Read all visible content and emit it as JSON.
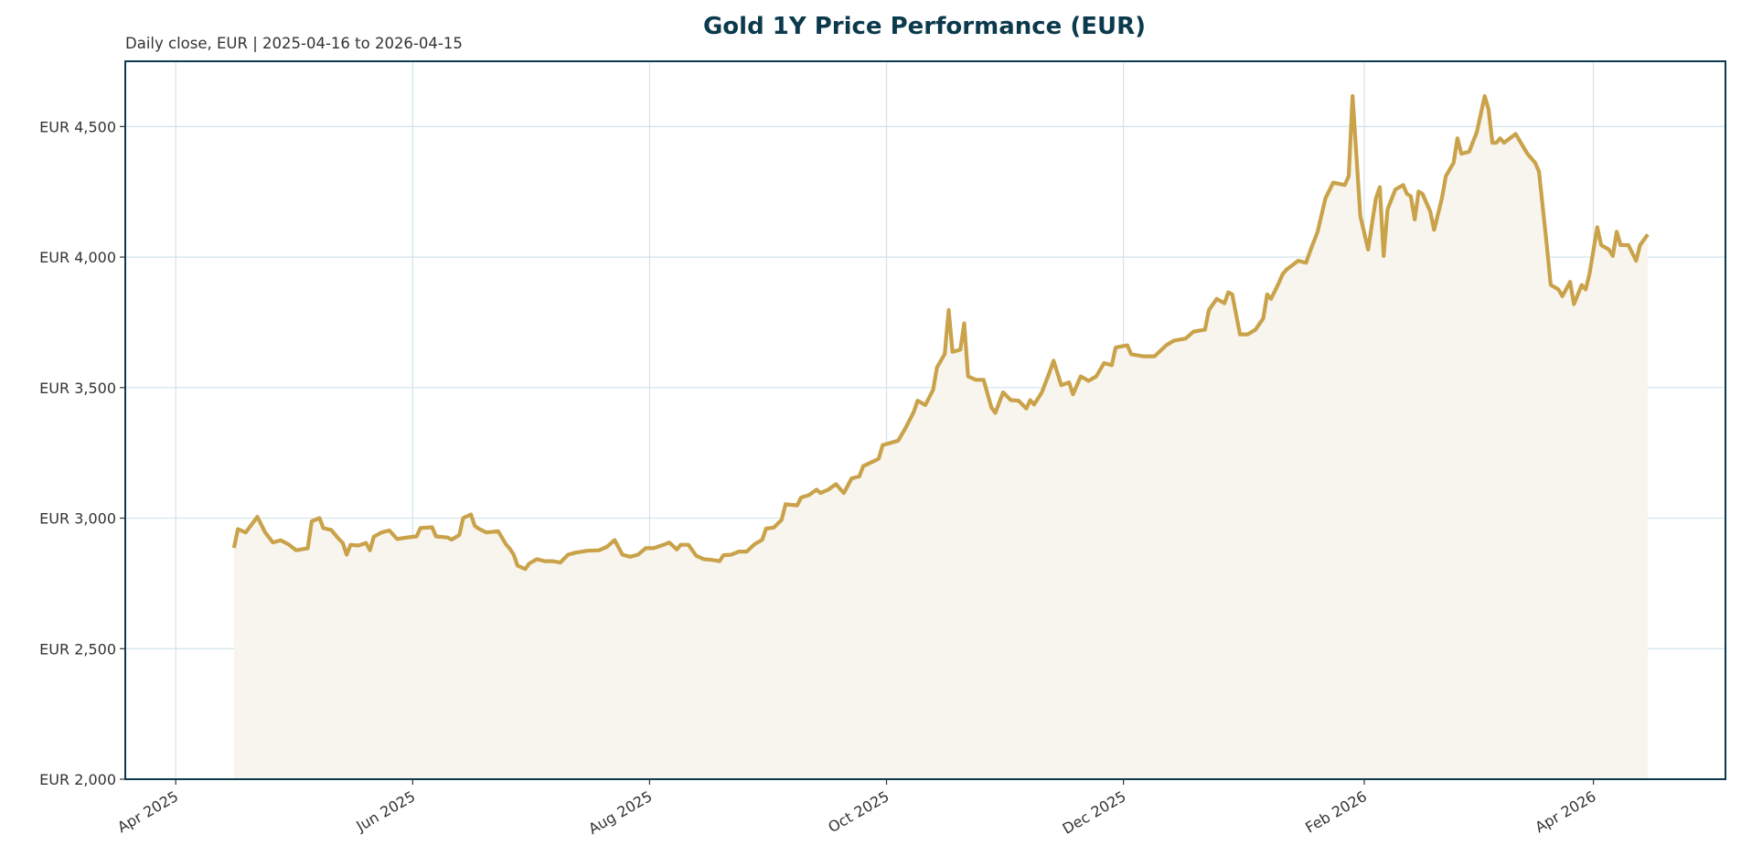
{
  "chart_data": {
    "type": "area",
    "title": "Gold 1Y Price Performance (EUR)",
    "subtitle": "Daily close, EUR | 2025-04-16 to 2026-04-15",
    "xlabel": "",
    "ylabel": "",
    "ylim": [
      2000,
      4750
    ],
    "xlim": [
      "2025-03-19",
      "2026-05-05"
    ],
    "y_ticks": [
      2000,
      2500,
      3000,
      3500,
      4000,
      4500
    ],
    "y_tick_labels": [
      "EUR 2,000",
      "EUR 2,500",
      "EUR 3,000",
      "EUR 3,500",
      "EUR 4,000",
      "EUR 4,500"
    ],
    "x_ticks": [
      "2025-04-01",
      "2025-06-01",
      "2025-08-01",
      "2025-10-01",
      "2025-12-01",
      "2026-02-01",
      "2026-04-01"
    ],
    "x_tick_labels": [
      "Apr 2025",
      "Jun 2025",
      "Aug 2025",
      "Oct 2025",
      "Dec 2025",
      "Feb 2026",
      "Apr 2026"
    ],
    "grid": true,
    "legend": "none",
    "colors": {
      "line": "#c9a24a",
      "fill": "#f8f5ee",
      "grid": "#d3e3ea",
      "spine": "#0b3a4d",
      "title": "#0b3a4d",
      "text": "#333333"
    },
    "series": [
      {
        "x": [
          "2025-04-16",
          "2025-04-17",
          "2025-04-19",
          "2025-04-22",
          "2025-04-24",
          "2025-04-26",
          "2025-04-28",
          "2025-04-30",
          "2025-05-02",
          "2025-05-05",
          "2025-05-06",
          "2025-05-08",
          "2025-05-09",
          "2025-05-11",
          "2025-05-13",
          "2025-05-14",
          "2025-05-15",
          "2025-05-16",
          "2025-05-18",
          "2025-05-20",
          "2025-05-21",
          "2025-05-22",
          "2025-05-24",
          "2025-05-26",
          "2025-05-28",
          "2025-05-30",
          "2025-06-02",
          "2025-06-03",
          "2025-06-06",
          "2025-06-07",
          "2025-06-10",
          "2025-06-11",
          "2025-06-13",
          "2025-06-14",
          "2025-06-16",
          "2025-06-17",
          "2025-06-18",
          "2025-06-20",
          "2025-06-23",
          "2025-06-25",
          "2025-06-26",
          "2025-06-27",
          "2025-06-28",
          "2025-06-30",
          "2025-07-01",
          "2025-07-03",
          "2025-07-05",
          "2025-07-07",
          "2025-07-09",
          "2025-07-11",
          "2025-07-13",
          "2025-07-16",
          "2025-07-19",
          "2025-07-21",
          "2025-07-23",
          "2025-07-25",
          "2025-07-27",
          "2025-07-29",
          "2025-07-31",
          "2025-08-02",
          "2025-08-05",
          "2025-08-06",
          "2025-08-08",
          "2025-08-09",
          "2025-08-11",
          "2025-08-13",
          "2025-08-15",
          "2025-08-17",
          "2025-08-19",
          "2025-08-20",
          "2025-08-22",
          "2025-08-24",
          "2025-08-26",
          "2025-08-28",
          "2025-08-30",
          "2025-08-31",
          "2025-09-02",
          "2025-09-04",
          "2025-09-05",
          "2025-09-08",
          "2025-09-09",
          "2025-09-11",
          "2025-09-13",
          "2025-09-14",
          "2025-09-16",
          "2025-09-18",
          "2025-09-20",
          "2025-09-22",
          "2025-09-24",
          "2025-09-25",
          "2025-09-28",
          "2025-09-29",
          "2025-09-30",
          "2025-10-02",
          "2025-10-04",
          "2025-10-06",
          "2025-10-08",
          "2025-10-09",
          "2025-10-11",
          "2025-10-13",
          "2025-10-14",
          "2025-10-16",
          "2025-10-17",
          "2025-10-18",
          "2025-10-20",
          "2025-10-21",
          "2025-10-22",
          "2025-10-24",
          "2025-10-26",
          "2025-10-28",
          "2025-10-29",
          "2025-10-31",
          "2025-11-02",
          "2025-11-04",
          "2025-11-06",
          "2025-11-07",
          "2025-11-08",
          "2025-11-10",
          "2025-11-12",
          "2025-11-13",
          "2025-11-15",
          "2025-11-17",
          "2025-11-18",
          "2025-11-20",
          "2025-11-22",
          "2025-11-24",
          "2025-11-26",
          "2025-11-28",
          "2025-11-29",
          "2025-12-02",
          "2025-12-03",
          "2025-12-06",
          "2025-12-09",
          "2025-12-12",
          "2025-12-14",
          "2025-12-17",
          "2025-12-19",
          "2025-12-22",
          "2025-12-23",
          "2025-12-25",
          "2025-12-27",
          "2025-12-28",
          "2025-12-29",
          "2025-12-31",
          "2026-01-02",
          "2026-01-04",
          "2026-01-06",
          "2026-01-07",
          "2026-01-08",
          "2026-01-10",
          "2026-01-11",
          "2026-01-12",
          "2026-01-15",
          "2026-01-17",
          "2026-01-18",
          "2026-01-20",
          "2026-01-22",
          "2026-01-24",
          "2026-01-27",
          "2026-01-28",
          "2026-01-29",
          "2026-01-31",
          "2026-02-02",
          "2026-02-04",
          "2026-02-05",
          "2026-02-06",
          "2026-02-07",
          "2026-02-09",
          "2026-02-11",
          "2026-02-12",
          "2026-02-13",
          "2026-02-14",
          "2026-02-15",
          "2026-02-16",
          "2026-02-18",
          "2026-02-19",
          "2026-02-21",
          "2026-02-22",
          "2026-02-24",
          "2026-02-25",
          "2026-02-26",
          "2026-02-28",
          "2026-03-02",
          "2026-03-04",
          "2026-03-05",
          "2026-03-06",
          "2026-03-07",
          "2026-03-08",
          "2026-03-09",
          "2026-03-12",
          "2026-03-13",
          "2026-03-15",
          "2026-03-17",
          "2026-03-18",
          "2026-03-20",
          "2026-03-21",
          "2026-03-23",
          "2026-03-24",
          "2026-03-26",
          "2026-03-27",
          "2026-03-29",
          "2026-03-30",
          "2026-03-31",
          "2026-04-02",
          "2026-04-03",
          "2026-04-05",
          "2026-04-06",
          "2026-04-07",
          "2026-04-08",
          "2026-04-10",
          "2026-04-12",
          "2026-04-13",
          "2026-04-15"
        ],
        "y": [
          2886,
          2958,
          2945,
          3005,
          2946,
          2907,
          2915,
          2900,
          2877,
          2885,
          2988,
          3000,
          2962,
          2955,
          2920,
          2905,
          2860,
          2898,
          2895,
          2905,
          2877,
          2929,
          2945,
          2953,
          2920,
          2925,
          2930,
          2962,
          2965,
          2930,
          2926,
          2918,
          2935,
          3000,
          3014,
          2970,
          2960,
          2945,
          2950,
          2900,
          2883,
          2860,
          2818,
          2805,
          2826,
          2843,
          2835,
          2835,
          2830,
          2860,
          2868,
          2875,
          2877,
          2890,
          2916,
          2860,
          2852,
          2860,
          2885,
          2885,
          2900,
          2907,
          2880,
          2898,
          2898,
          2856,
          2843,
          2840,
          2835,
          2858,
          2860,
          2872,
          2872,
          2900,
          2917,
          2960,
          2964,
          2994,
          3053,
          3049,
          3079,
          3088,
          3109,
          3096,
          3109,
          3130,
          3096,
          3152,
          3160,
          3199,
          3220,
          3228,
          3280,
          3288,
          3297,
          3348,
          3407,
          3450,
          3433,
          3492,
          3577,
          3629,
          3797,
          3637,
          3645,
          3746,
          3543,
          3530,
          3530,
          3424,
          3403,
          3482,
          3452,
          3450,
          3420,
          3452,
          3435,
          3482,
          3560,
          3603,
          3509,
          3520,
          3474,
          3543,
          3526,
          3543,
          3594,
          3586,
          3654,
          3662,
          3628,
          3620,
          3620,
          3662,
          3680,
          3688,
          3714,
          3722,
          3797,
          3840,
          3823,
          3865,
          3857,
          3704,
          3704,
          3722,
          3765,
          3857,
          3840,
          3900,
          3935,
          3952,
          3986,
          3978,
          4020,
          4097,
          4225,
          4285,
          4276,
          4310,
          4617,
          4157,
          4029,
          4225,
          4268,
          4004,
          4183,
          4259,
          4276,
          4242,
          4233,
          4144,
          4251,
          4242,
          4174,
          4104,
          4225,
          4310,
          4361,
          4455,
          4396,
          4404,
          4480,
          4617,
          4566,
          4438,
          4438,
          4455,
          4438,
          4472,
          4446,
          4396,
          4361,
          4327,
          4046,
          3893,
          3876,
          3850,
          3905,
          3820,
          3893,
          3876,
          3935,
          4114,
          4046,
          4029,
          4004,
          4097,
          4046,
          4046,
          3986,
          4046,
          4087
        ]
      }
    ]
  }
}
